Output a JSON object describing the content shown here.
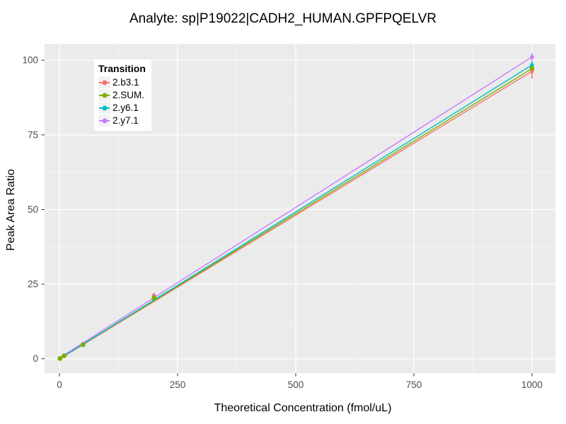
{
  "title": "Analyte: sp|P19022|CADH2_HUMAN.GPFPQELVR",
  "chart_data": {
    "type": "line",
    "title": "Analyte: sp|P19022|CADH2_HUMAN.GPFPQELVR",
    "xlabel": "Theoretical Concentration (fmol/uL)",
    "ylabel": "Peak Area Ratio",
    "xlim": [
      -31.5,
      1049.5
    ],
    "ylim": [
      -4.8,
      105.5
    ],
    "x_ticks": [
      0,
      250,
      500,
      750,
      1000
    ],
    "x_tick_labels": [
      "0",
      "250",
      "500",
      "750",
      "1000"
    ],
    "y_ticks": [
      0,
      25,
      50,
      75,
      100
    ],
    "y_tick_labels": [
      "0",
      "25",
      "50",
      "75",
      "100"
    ],
    "x_minor": [
      125,
      375,
      625,
      875
    ],
    "y_minor": [
      12.5,
      37.5,
      62.5,
      87.5
    ],
    "grid": true,
    "legend": {
      "title": "Transition",
      "position": "top-left-inside"
    },
    "series": [
      {
        "name": "2.b3.1",
        "color": "#F8766D",
        "fit_line": {
          "x": [
            0,
            1000
          ],
          "y": [
            -0.1,
            96.3
          ]
        },
        "points": {
          "x": [
            1,
            10,
            50,
            200,
            1000
          ],
          "y": [
            0.1,
            1.0,
            4.6,
            21.2,
            96.3
          ]
        },
        "error_bars": [
          {
            "x": 200,
            "ymin": 20.3,
            "ymax": 22.1
          },
          {
            "x": 1000,
            "ymin": 93.9,
            "ymax": 98.4
          }
        ]
      },
      {
        "name": "2.SUM.",
        "color": "#7CAE00",
        "fit_line": {
          "x": [
            0,
            1000
          ],
          "y": [
            0.0,
            97.2
          ]
        },
        "points": {
          "x": [
            1,
            10,
            50,
            200,
            1000
          ],
          "y": [
            0.1,
            1.0,
            4.7,
            20.4,
            97.2
          ]
        },
        "error_bars": [
          {
            "x": 1000,
            "ymin": 96.0,
            "ymax": 98.2
          }
        ]
      },
      {
        "name": "2.y6.1",
        "color": "#00BFC4",
        "fit_line": {
          "x": [
            0,
            1000
          ],
          "y": [
            0.0,
            98.4
          ]
        },
        "points": {
          "x": [
            1,
            10,
            50,
            200,
            1000
          ],
          "y": [
            0.1,
            1.0,
            4.7,
            20.1,
            98.4
          ]
        },
        "error_bars": [
          {
            "x": 1000,
            "ymin": 97.0,
            "ymax": 99.7
          }
        ]
      },
      {
        "name": "2.y7.1",
        "color": "#C77CFF",
        "fit_line": {
          "x": [
            0,
            1000
          ],
          "y": [
            0.3,
            101.1
          ]
        },
        "points": {
          "x": [
            1,
            10,
            50,
            200,
            1000
          ],
          "y": [
            0.1,
            1.1,
            5.0,
            20.8,
            101.1
          ]
        },
        "error_bars": [
          {
            "x": 1000,
            "ymin": 99.8,
            "ymax": 102.4
          }
        ]
      }
    ],
    "style": {
      "panel_bg": "#EBEBEB",
      "grid_color": "#FFFFFF",
      "tick_color": "#333333",
      "tick_label_color": "#4D4D4D",
      "text_color": "#000000",
      "legend_bg": "#FFFFFF",
      "legend_key_bg": "#F2F2F2"
    }
  }
}
